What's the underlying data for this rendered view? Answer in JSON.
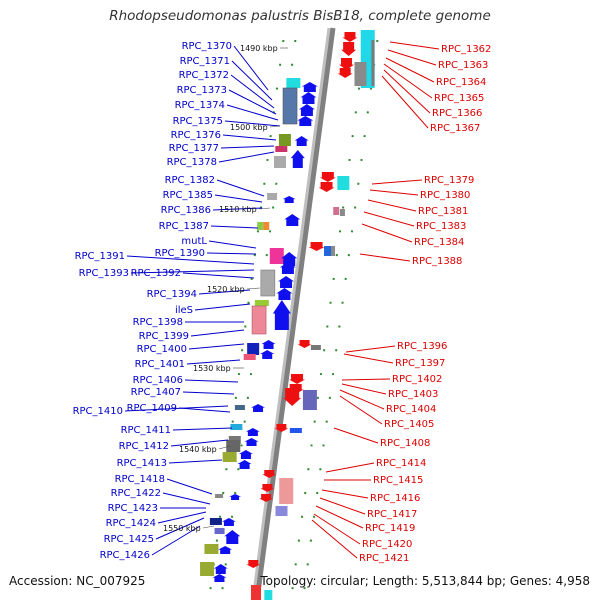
{
  "title": "Rhodopseudomonas palustris BisB18, complete genome",
  "accession": "Accession: NC_007925",
  "topology": "Topology: circular; Length: 5,513,844 bp; Genes: 4,958",
  "colors": {
    "left_label": "#0000cc",
    "right_label": "#dd0000",
    "backbone": "#808080",
    "tick": "#2e8b2e"
  },
  "kbp_markers": [
    "1490 kbp",
    "1500 kbp",
    "1510 kbp",
    "1520 kbp",
    "1530 kbp",
    "1540 kbp",
    "1550 kbp"
  ],
  "left_labels": [
    "RPC_1370",
    "RPC_1371",
    "RPC_1372",
    "RPC_1373",
    "RPC_1374",
    "RPC_1375",
    "RPC_1376",
    "RPC_1377",
    "RPC_1378",
    "RPC_1382",
    "RPC_1385",
    "RPC_1386",
    "RPC_1387",
    "mutL",
    "RPC_1390",
    "RPC_1391",
    "RPC_1393",
    "RPC_1392",
    "RPC_1394",
    "ileS",
    "RPC_1398",
    "RPC_1399",
    "RPC_1400",
    "RPC_1401",
    "RPC_1406",
    "RPC_1407",
    "RPC_1410",
    "RPC_1409",
    "RPC_1411",
    "RPC_1412",
    "RPC_1413",
    "RPC_1418",
    "RPC_1422",
    "RPC_1423",
    "RPC_1424",
    "RPC_1425",
    "RPC_1426"
  ],
  "right_labels": [
    "RPC_1362",
    "RPC_1363",
    "RPC_1364",
    "RPC_1365",
    "RPC_1366",
    "RPC_1367",
    "RPC_1379",
    "RPC_1380",
    "RPC_1381",
    "RPC_1383",
    "RPC_1384",
    "RPC_1388",
    "RPC_1396",
    "RPC_1397",
    "RPC_1402",
    "RPC_1403",
    "RPC_1404",
    "RPC_1405",
    "RPC_1408",
    "RPC_1414",
    "RPC_1415",
    "RPC_1416",
    "RPC_1417",
    "RPC_1419",
    "RPC_1420",
    "RPC_1421"
  ]
}
